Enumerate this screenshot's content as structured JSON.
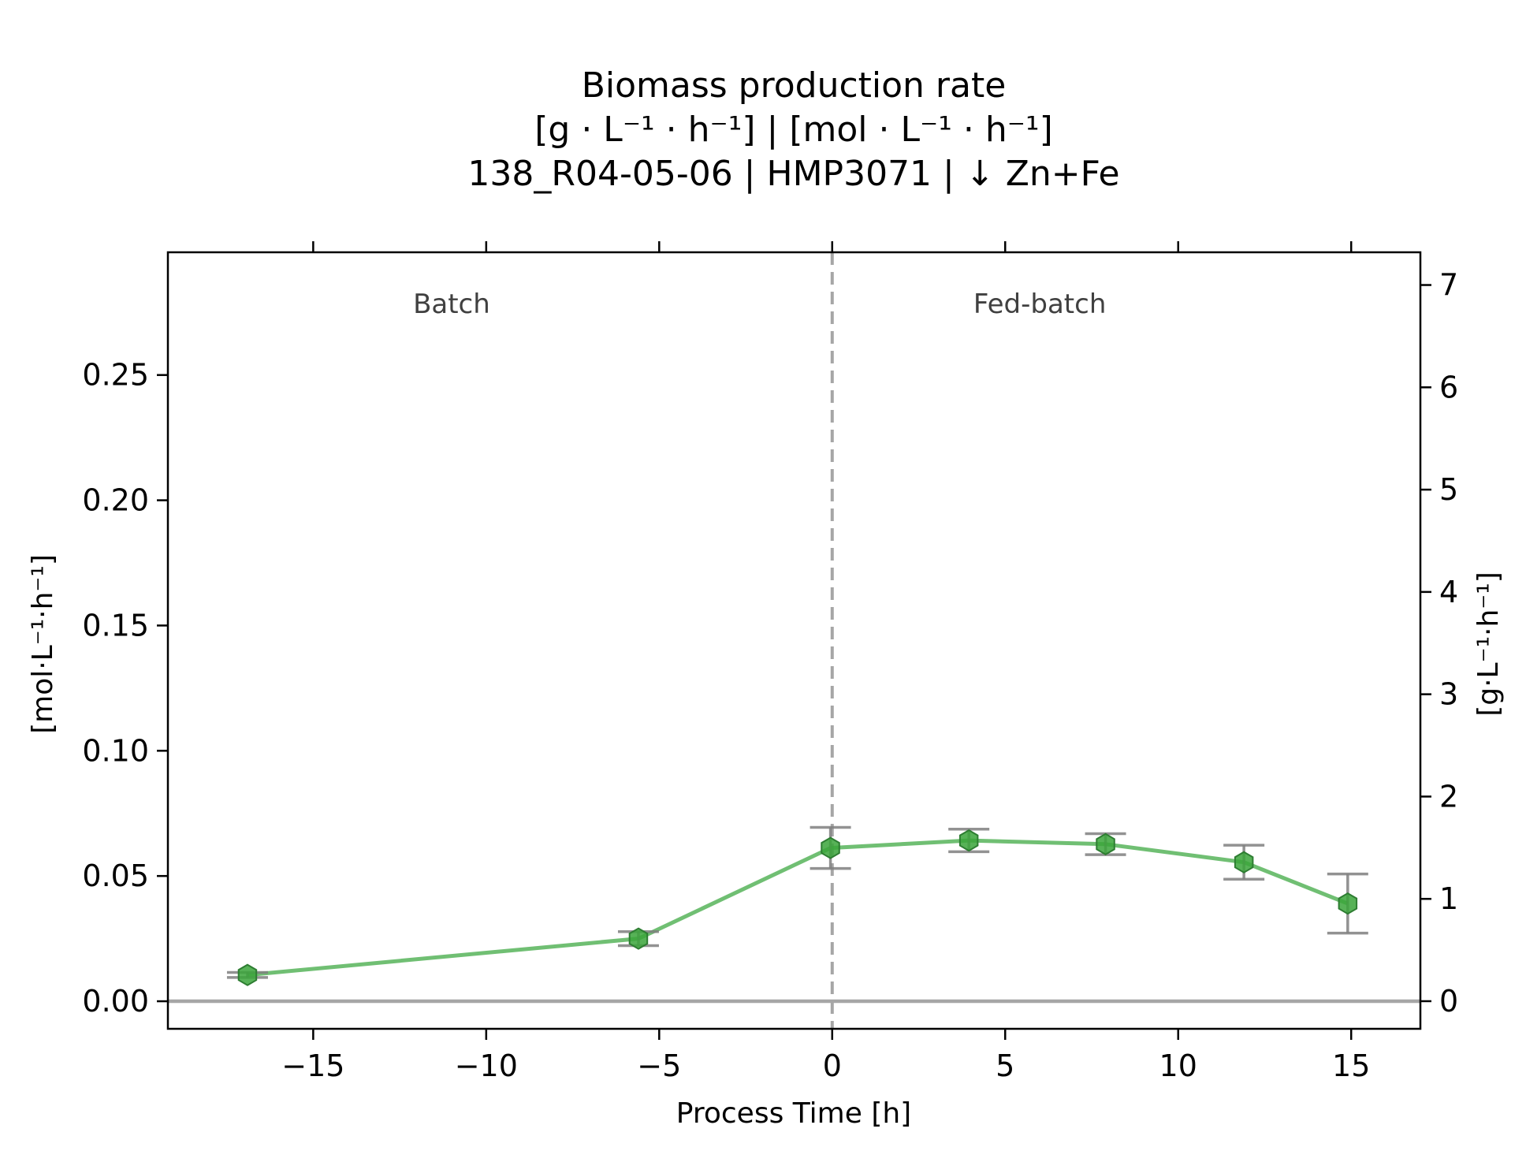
{
  "chart_data": {
    "type": "line",
    "title_lines": [
      "Biomass production rate",
      "[g · L⁻¹ · h⁻¹]    |    [mol · L⁻¹ · h⁻¹]",
      "138_R04-05-06  |  HMP3071  |  ↓ Zn+Fe"
    ],
    "xlabel": "Process Time [h]",
    "ylabel_left": "[mol·L⁻¹·h⁻¹]",
    "ylabel_right": "[g·L⁻¹·h⁻¹]",
    "xlim": [
      -19.2,
      17
    ],
    "ylim_left": [
      -0.011,
      0.299
    ],
    "ylim_right": [
      -0.27,
      7.32
    ],
    "x_ticks": [
      -15,
      -10,
      -5,
      0,
      5,
      10,
      15
    ],
    "x_tick_labels": [
      "−15",
      "−10",
      "−5",
      "0",
      "5",
      "10",
      "15"
    ],
    "y_left_ticks": [
      0,
      0.05,
      0.1,
      0.15,
      0.2,
      0.25
    ],
    "y_left_tick_labels": [
      "0.00",
      "0.05",
      "0.10",
      "0.15",
      "0.20",
      "0.25"
    ],
    "y_right_ticks": [
      0,
      1,
      2,
      3,
      4,
      5,
      6,
      7
    ],
    "y_right_tick_labels": [
      "0",
      "1",
      "2",
      "3",
      "4",
      "5",
      "6",
      "7"
    ],
    "phases": [
      {
        "label": "Batch",
        "x": -11
      },
      {
        "label": "Fed-batch",
        "x": 6
      }
    ],
    "phase_boundary_x": 0,
    "zero_line_y": 0,
    "series": [
      {
        "x": [
          -16.9,
          -5.6,
          -0.05,
          3.95,
          7.9,
          11.9,
          14.9
        ],
        "y": [
          0.0105,
          0.025,
          0.0612,
          0.0642,
          0.0627,
          0.0555,
          0.039
        ],
        "yerr": [
          0.001,
          0.0028,
          0.0082,
          0.0045,
          0.0042,
          0.0068,
          0.0118
        ],
        "color": "#4caf50"
      }
    ],
    "grid": false,
    "legend": "none"
  },
  "colors": {
    "line": "#4caf50",
    "marker_fill": "#3aa53a",
    "errorbar": "#7f7f7f",
    "reference_lines": "#a6a6a6"
  }
}
